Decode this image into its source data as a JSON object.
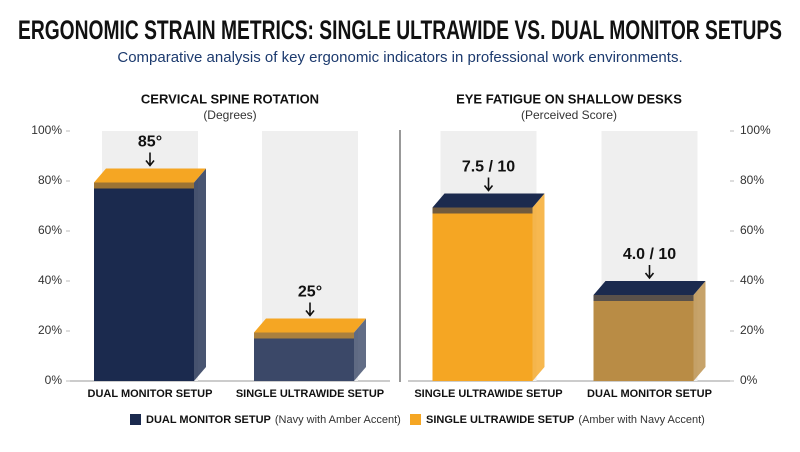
{
  "title": "ERGONOMIC STRAIN METRICS: SINGLE ULTRAWIDE VS. DUAL MONITOR SETUPS",
  "subtitle": "Comparative analysis of key ergonomic indicators in professional work environments.",
  "legend": [
    {
      "label": "DUAL MONITOR SETUP",
      "note": "(Navy with Amber Accent)",
      "color": "#1b2a4e"
    },
    {
      "label": "SINGLE ULTRAWIDE SETUP",
      "note": "(Amber with Navy Accent)",
      "color": "#f5a623"
    }
  ],
  "chart_data": [
    {
      "type": "bar",
      "title": "CERVICAL SPINE ROTATION",
      "subtitle": "(Degrees)",
      "categories": [
        "DUAL MONITOR SETUP",
        "SINGLE ULTRAWIDE SETUP"
      ],
      "values": [
        85,
        25
      ],
      "value_labels": [
        "85°",
        "25°"
      ],
      "colors": [
        "#1b2a4e",
        "#3b4868"
      ],
      "accents": [
        "#f5a623",
        "#f5a623"
      ],
      "ylim": [
        0,
        100
      ],
      "yaxis": "left",
      "yticks": [
        {
          "value": 0,
          "label": "0%"
        },
        {
          "value": 20,
          "label": "20%"
        },
        {
          "value": 40,
          "label": "40%"
        },
        {
          "value": 60,
          "label": "60%"
        },
        {
          "value": 80,
          "label": "80%"
        },
        {
          "value": 100,
          "label": "100%"
        }
      ]
    },
    {
      "type": "bar",
      "title": "EYE FATIGUE ON SHALLOW DESKS",
      "subtitle": "(Perceived Score)",
      "categories": [
        "SINGLE ULTRAWIDE SETUP",
        "DUAL MONITOR SETUP"
      ],
      "values": [
        75,
        40
      ],
      "value_labels": [
        "7.5 / 10",
        "4.0 / 10"
      ],
      "colors": [
        "#f5a623",
        "#b98c45"
      ],
      "accents": [
        "#1b2a4e",
        "#1b2a4e"
      ],
      "ylim": [
        0,
        100
      ],
      "yaxis": "right",
      "yticks": [
        {
          "value": 0,
          "label": "0%"
        },
        {
          "value": 20,
          "label": "20%"
        },
        {
          "value": 40,
          "label": "40%"
        },
        {
          "value": 60,
          "label": "60%"
        },
        {
          "value": 80,
          "label": "80%"
        },
        {
          "value": 100,
          "label": "100%"
        }
      ]
    }
  ]
}
